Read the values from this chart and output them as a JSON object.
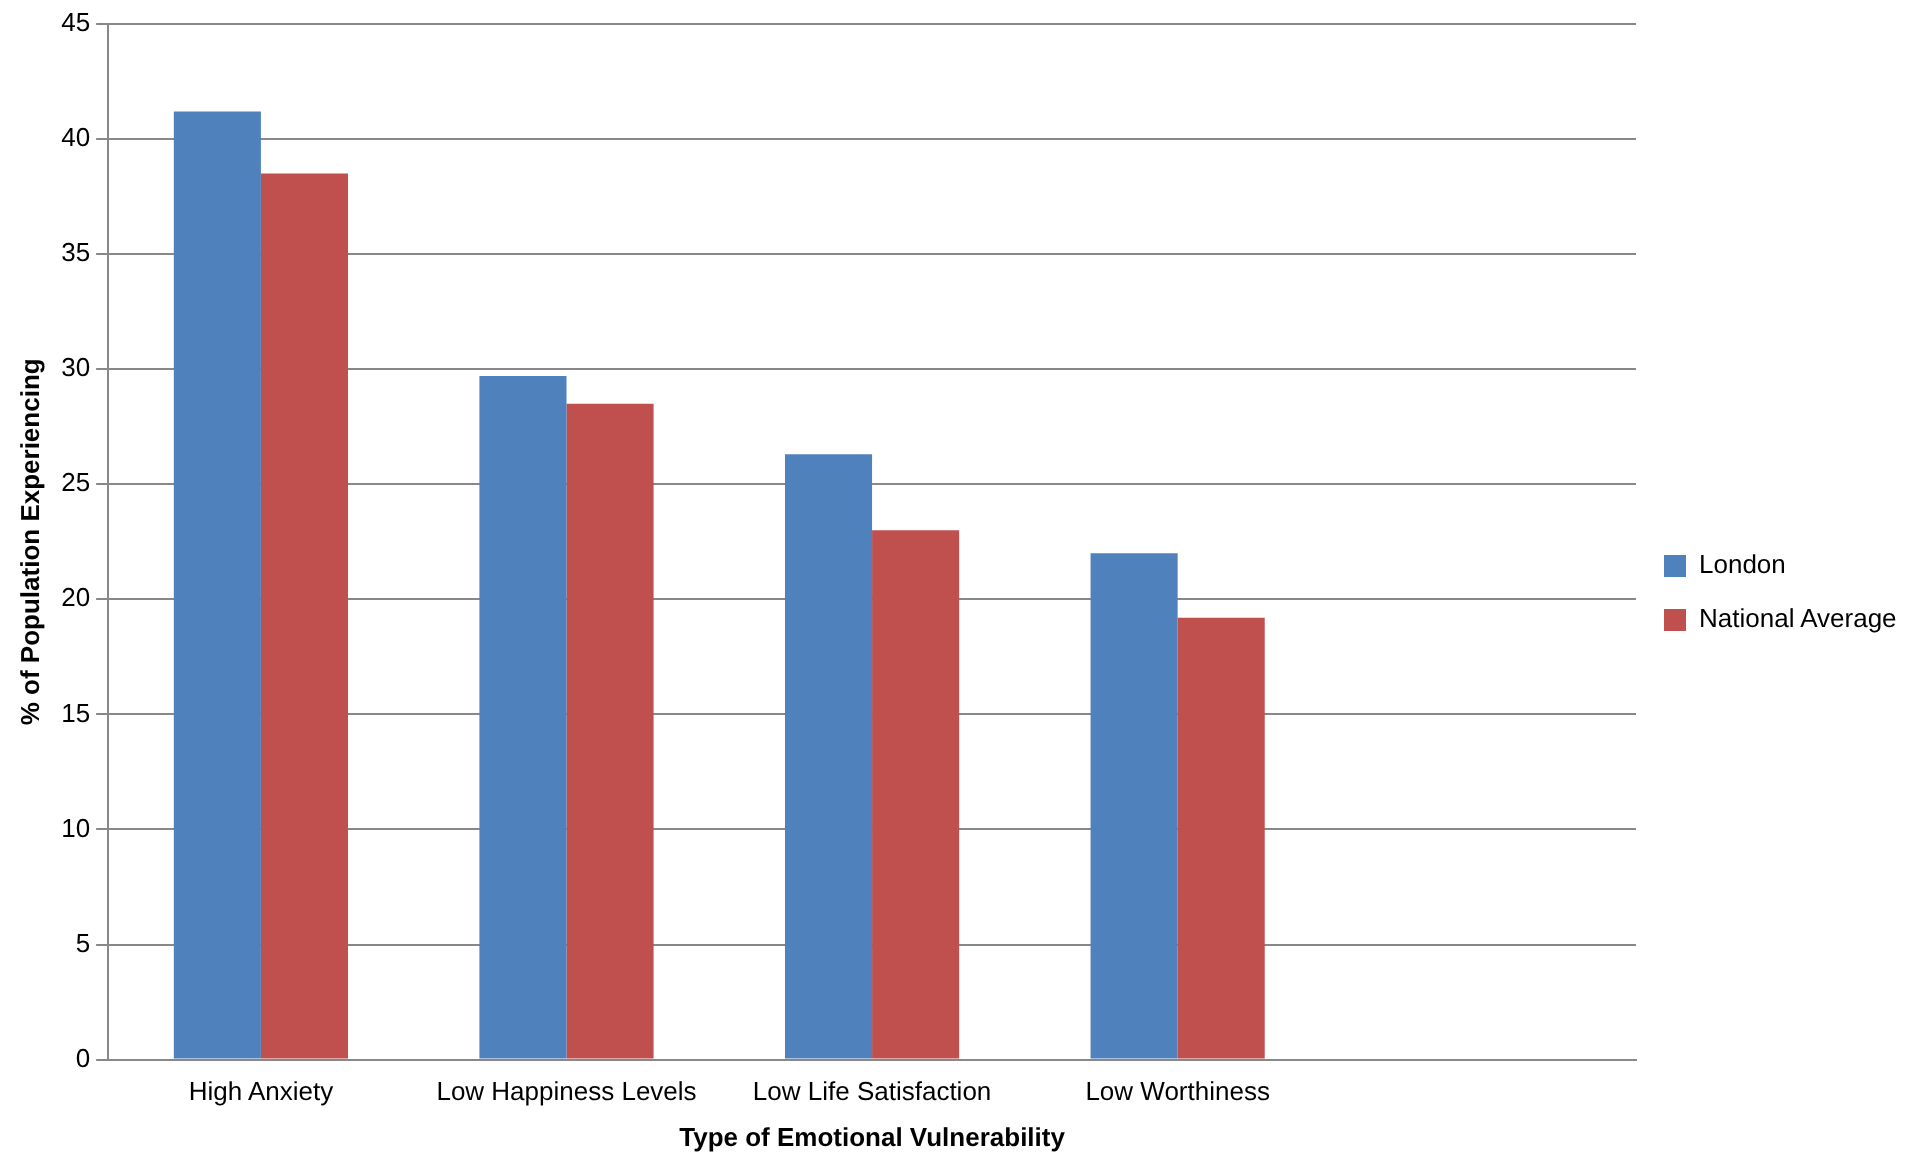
{
  "chart_data": {
    "type": "bar",
    "xlabel": "Type of Emotional Vulnerability",
    "ylabel": "% of Population Experiencing",
    "categories": [
      "High Anxiety",
      "Low Happiness Levels",
      "Low Life Satisfaction",
      "Low Worthiness",
      null
    ],
    "series": [
      {
        "name": "London",
        "color": "#4f81bd",
        "values": [
          41.2,
          29.7,
          26.3,
          22.0,
          null
        ]
      },
      {
        "name": "National Average",
        "color": "#c0504d",
        "values": [
          38.5,
          28.5,
          23.0,
          19.2,
          null
        ]
      }
    ],
    "ylim": [
      0,
      45
    ],
    "yticks": [
      0,
      5,
      10,
      15,
      20,
      25,
      30,
      35,
      40,
      45
    ],
    "grid": "y",
    "legend": "right"
  }
}
